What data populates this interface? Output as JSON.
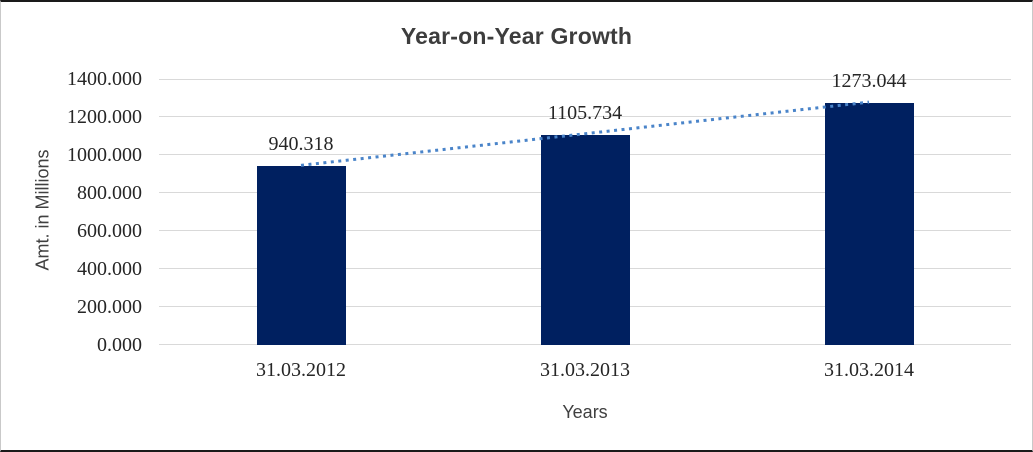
{
  "chart_data": {
    "type": "bar",
    "title": "Year-on-Year Growth",
    "xlabel": "Years",
    "ylabel": "Amt. in Millions",
    "categories": [
      "31.03.2012",
      "31.03.2013",
      "31.03.2014"
    ],
    "values": [
      940.318,
      1105.734,
      1273.044
    ],
    "data_labels": [
      "940.318",
      "1105.734",
      "1273.044"
    ],
    "ylim": [
      0,
      1400
    ],
    "ytick_step": 200,
    "ytick_labels": [
      "0.000",
      "200.000",
      "400.000",
      "600.000",
      "800.000",
      "1000.000",
      "1200.000",
      "1400.000"
    ],
    "grid": true,
    "legend": "none",
    "colors": {
      "bar": "#002060",
      "trendline": "#4a84c9",
      "gridline": "#d9d9d9",
      "title_text": "#3d3d3d",
      "tick_text": "#262626",
      "axis_title_text": "#404040"
    },
    "trendline": {
      "type": "linear",
      "style": "dotted"
    }
  }
}
